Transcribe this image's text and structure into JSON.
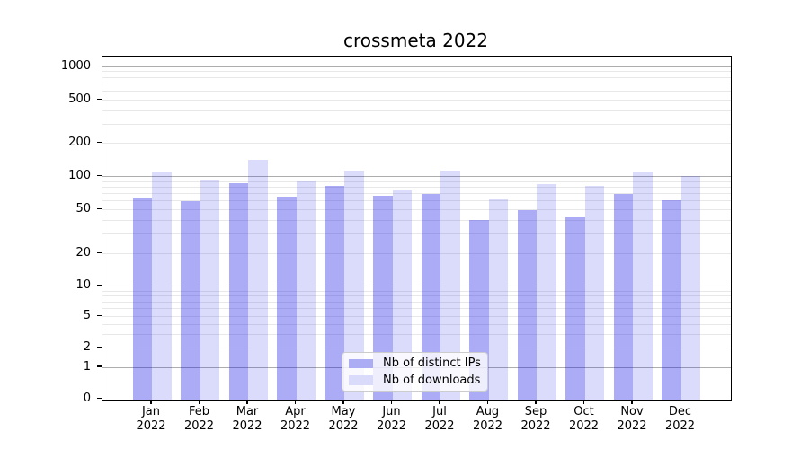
{
  "title": "crossmeta 2022",
  "legend": {
    "items": [
      {
        "label": "Nb of distinct IPs",
        "series": "ips"
      },
      {
        "label": "Nb of downloads",
        "series": "downloads"
      }
    ]
  },
  "axes": {
    "y_tick_labels": [
      "1000",
      "500",
      "200",
      "100",
      "50",
      "20",
      "10",
      "5",
      "2",
      "1",
      "0"
    ],
    "x_tick_year": "2022",
    "x_tick_months": [
      "Jan",
      "Feb",
      "Mar",
      "Apr",
      "May",
      "Jun",
      "Jul",
      "Aug",
      "Sep",
      "Oct",
      "Nov",
      "Dec"
    ]
  },
  "colors": {
    "bar_ips_fill": "rgba(13,13,228,0.34)",
    "bar_downloads_fill": "rgba(13,13,228,0.15)",
    "legend_swatch_ips": "#acacf5",
    "legend_swatch_downloads": "#dadafa",
    "grid_major": "#adadad",
    "grid_minor": "#e8e8e8",
    "spine": "#000000",
    "text": "#000000"
  },
  "chart_data": {
    "type": "bar",
    "title": "crossmeta 2022",
    "categories": [
      "Jan 2022",
      "Feb 2022",
      "Mar 2022",
      "Apr 2022",
      "May 2022",
      "Jun 2022",
      "Jul 2022",
      "Aug 2022",
      "Sep 2022",
      "Oct 2022",
      "Nov 2022",
      "Dec 2022"
    ],
    "series": [
      {
        "name": "Nb of distinct IPs",
        "values": [
          64,
          60,
          87,
          66,
          82,
          67,
          70,
          40,
          50,
          43,
          69,
          61
        ]
      },
      {
        "name": "Nb of downloads",
        "values": [
          110,
          93,
          141,
          90,
          113,
          75,
          114,
          62,
          86,
          83,
          109,
          101
        ]
      }
    ],
    "xlabel": "",
    "ylabel": "",
    "yscale": "logarithmic with zero baseline (ticks 1-2-5 pattern)",
    "ylim": [
      0,
      1240
    ],
    "y_ticks": [
      1000,
      500,
      200,
      100,
      50,
      20,
      10,
      5,
      2,
      1,
      0
    ],
    "grid": "horizontal major (1,10,100,1000) + minor (2-9 per decade)",
    "legend_position": "lower center"
  }
}
